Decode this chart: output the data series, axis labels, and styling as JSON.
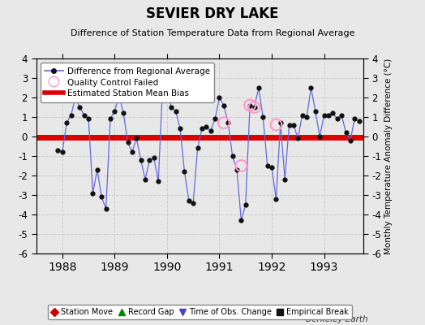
{
  "title": "SEVIER DRY LAKE",
  "subtitle": "Difference of Station Temperature Data from Regional Average",
  "ylabel": "Monthly Temperature Anomaly Difference (°C)",
  "xlabel_bottom": "Berkeley Earth",
  "bias_value": -0.05,
  "ylim": [
    -6,
    4
  ],
  "xlim_start": 1987.5,
  "xlim_end": 1993.75,
  "background_color": "#e8e8e8",
  "plot_bg_color": "#e8e8e8",
  "grid_color": "#cccccc",
  "bias_color": "#dd0000",
  "line_color": "#6666dd",
  "marker_color": "#111111",
  "qc_color": "#ff99cc",
  "x_data": [
    1987.917,
    1988.0,
    1988.083,
    1988.167,
    1988.25,
    1988.333,
    1988.417,
    1988.5,
    1988.583,
    1988.667,
    1988.75,
    1988.833,
    1988.917,
    1989.0,
    1989.083,
    1989.167,
    1989.25,
    1989.333,
    1989.417,
    1989.5,
    1989.583,
    1989.667,
    1989.75,
    1989.833,
    1989.917,
    1990.0,
    1990.083,
    1990.167,
    1990.25,
    1990.333,
    1990.417,
    1990.5,
    1990.583,
    1990.667,
    1990.75,
    1990.833,
    1990.917,
    1991.0,
    1991.083,
    1991.167,
    1991.25,
    1991.333,
    1991.417,
    1991.5,
    1991.583,
    1991.667,
    1991.75,
    1991.833,
    1991.917,
    1992.0,
    1992.083,
    1992.167,
    1992.25,
    1992.333,
    1992.417,
    1992.5,
    1992.583,
    1992.667,
    1992.75,
    1992.833,
    1992.917,
    1993.0,
    1993.083,
    1993.167,
    1993.25,
    1993.333,
    1993.417,
    1993.5,
    1993.583,
    1993.667
  ],
  "y_data": [
    -0.7,
    -0.8,
    0.7,
    1.1,
    2.0,
    1.5,
    1.1,
    0.9,
    -2.9,
    -1.7,
    -3.1,
    -3.7,
    0.9,
    1.3,
    2.1,
    1.2,
    -0.3,
    -0.8,
    -0.1,
    -1.2,
    -2.2,
    -1.2,
    -1.1,
    -2.3,
    2.6,
    2.3,
    1.5,
    1.3,
    0.4,
    -1.8,
    -3.3,
    -3.4,
    -0.6,
    0.4,
    0.5,
    0.3,
    0.9,
    2.0,
    1.6,
    0.7,
    -1.0,
    -1.7,
    -4.3,
    -3.5,
    1.6,
    1.5,
    2.5,
    1.0,
    -1.5,
    -1.6,
    -3.2,
    0.7,
    -2.2,
    0.6,
    0.6,
    -0.1,
    1.1,
    1.0,
    2.5,
    1.3,
    0.0,
    1.1,
    1.1,
    1.2,
    0.9,
    1.1,
    0.2,
    -0.2,
    0.9,
    0.8
  ],
  "qc_x": [
    1991.083,
    1991.417,
    1991.583,
    1991.667,
    1992.083
  ],
  "qc_y": [
    0.7,
    -1.5,
    1.6,
    1.5,
    0.6
  ],
  "xticks": [
    1988,
    1989,
    1990,
    1991,
    1992,
    1993
  ],
  "yticks": [
    -6,
    -5,
    -4,
    -3,
    -2,
    -1,
    0,
    1,
    2,
    3,
    4
  ],
  "top_legend": [
    {
      "label": "Difference from Regional Average",
      "type": "line_dot"
    },
    {
      "label": "Quality Control Failed",
      "type": "open_circle"
    },
    {
      "label": "Estimated Station Mean Bias",
      "type": "red_line"
    }
  ],
  "bottom_legend": [
    {
      "label": "Station Move",
      "marker": "D",
      "color": "#cc0000"
    },
    {
      "label": "Record Gap",
      "marker": "^",
      "color": "#008800"
    },
    {
      "label": "Time of Obs. Change",
      "marker": "v",
      "color": "#4444cc"
    },
    {
      "label": "Empirical Break",
      "marker": "s",
      "color": "#111111"
    }
  ]
}
